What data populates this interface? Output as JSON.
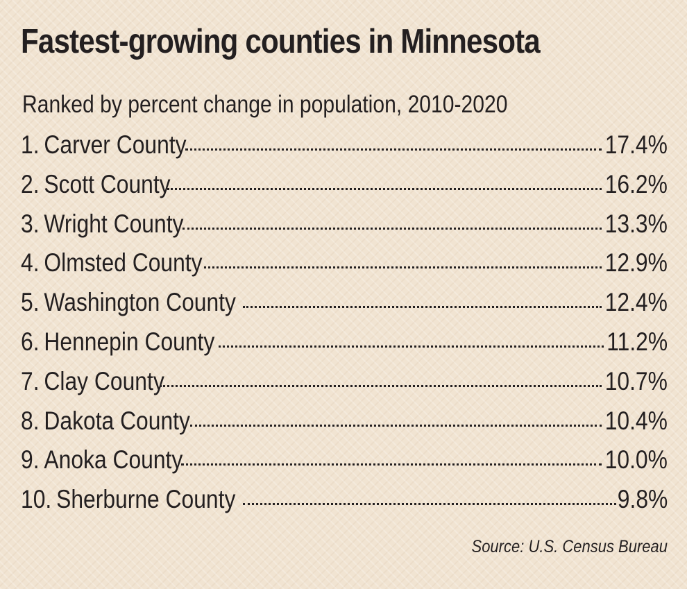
{
  "title": "Fastest-growing counties in Minnesota",
  "subtitle": "Ranked by percent change in population, 2010-2020",
  "rows": [
    {
      "rank": "1.",
      "county": "Carver County",
      "value": "17.4%"
    },
    {
      "rank": "2.",
      "county": "Scott County",
      "value": "16.2%"
    },
    {
      "rank": "3.",
      "county": "Wright County",
      "value": "13.3%"
    },
    {
      "rank": "4.",
      "county": "Olmsted County",
      "value": "12.9%"
    },
    {
      "rank": "5.",
      "county": "Washington County",
      "value": "12.4%"
    },
    {
      "rank": "6.",
      "county": "Hennepin County",
      "value": "11.2%"
    },
    {
      "rank": "7.",
      "county": "Clay County",
      "value": "10.7%"
    },
    {
      "rank": "8.",
      "county": "Dakota County",
      "value": "10.4%"
    },
    {
      "rank": "9.",
      "county": "Anoka County",
      "value": "10.0%"
    },
    {
      "rank": "10.",
      "county": "Sherburne County",
      "value": "9.8%"
    }
  ],
  "source": "Source: U.S. Census Bureau",
  "colors": {
    "background": "#f1e4d2",
    "text": "#231f20"
  }
}
